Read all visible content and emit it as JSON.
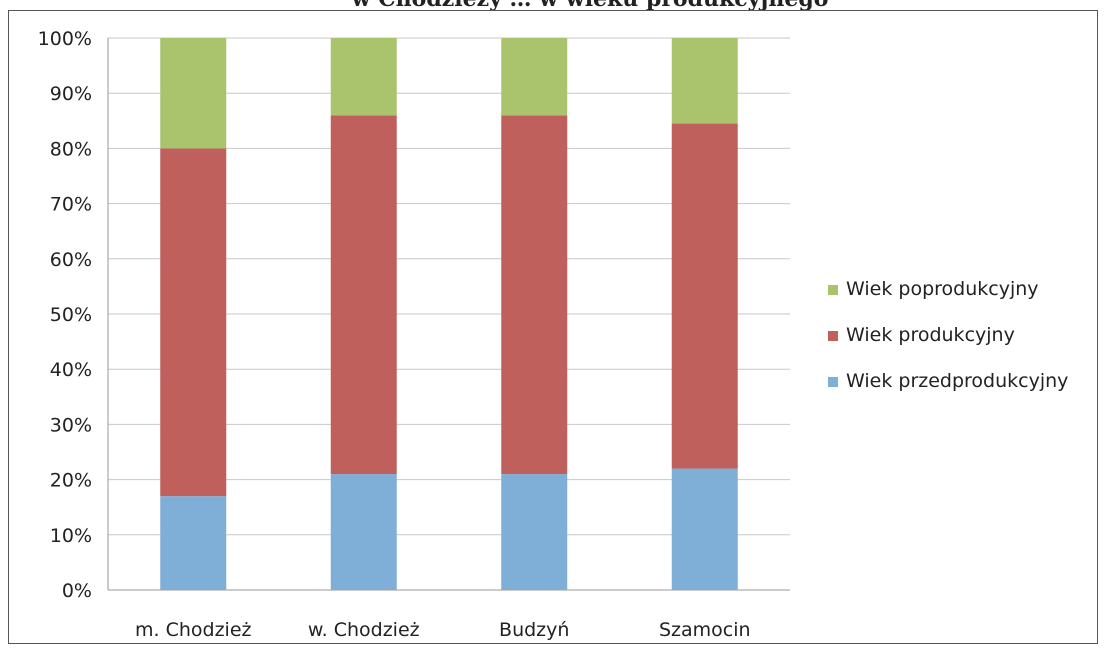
{
  "chart_data": {
    "type": "bar",
    "stacked": true,
    "title": "w Chodzieży … w wieku produkcyjnego",
    "categories": [
      "m. Chodzież",
      "w. Chodzież",
      "Budzyń",
      "Szamocin"
    ],
    "series": [
      {
        "name": "Wiek przedprodukcyjny",
        "color": "#7FAFD6",
        "values": [
          17,
          21,
          21,
          22
        ]
      },
      {
        "name": "Wiek produkcyjny",
        "color": "#C0605D",
        "values": [
          63,
          65,
          65,
          62.5
        ]
      },
      {
        "name": "Wiek poprodukcyjny",
        "color": "#A9C46D",
        "values": [
          20,
          14,
          14,
          15.5
        ]
      }
    ],
    "legend_order": [
      "Wiek poprodukcyjny",
      "Wiek produkcyjny",
      "Wiek przedprodukcyjny"
    ],
    "ylim": [
      0,
      100
    ],
    "yticks": [
      "0%",
      "10%",
      "20%",
      "30%",
      "40%",
      "50%",
      "60%",
      "70%",
      "80%",
      "90%",
      "100%"
    ],
    "grid": true,
    "legend_position": "right"
  }
}
